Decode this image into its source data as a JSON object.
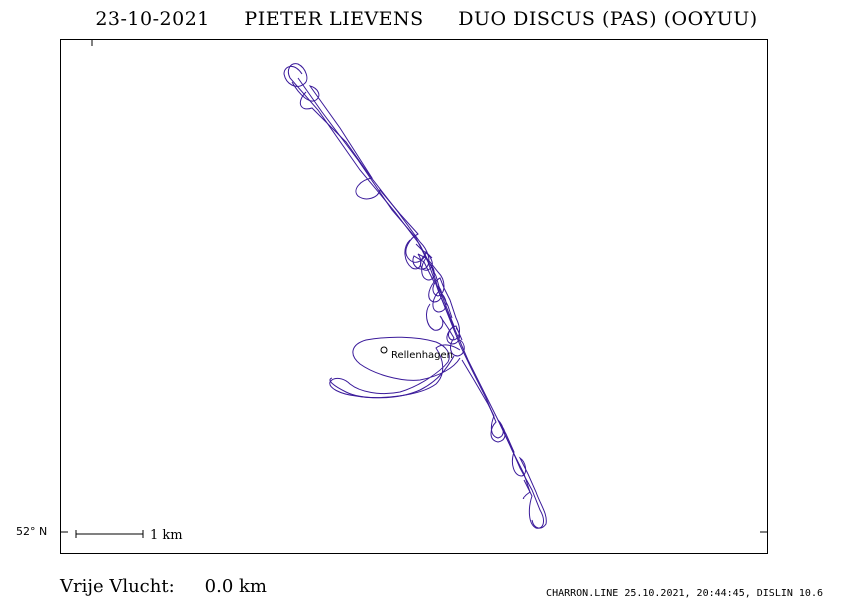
{
  "header": {
    "date": "23-10-2021",
    "pilot": "PIETER LIEVENS",
    "glider": "DUO DISCUS (PAS) (OOYUU)"
  },
  "map": {
    "latitude_label": "52° N",
    "scale_label": "1  km",
    "place_name": "Rellenhagen",
    "track_color": "#3a1a9a"
  },
  "footer": {
    "task_label": "Vrije Vlucht:",
    "distance": "0.0 km",
    "software_info": "CHARRON.LINE 25.10.2021, 20:44:45, DISLIN 10.6"
  }
}
